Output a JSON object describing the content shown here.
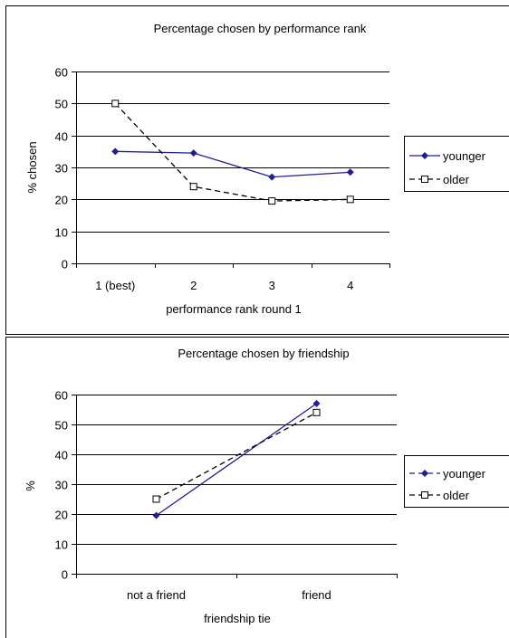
{
  "chart_data": [
    {
      "type": "line",
      "title": "Percentage chosen by performance rank",
      "xlabel": "performance rank round 1",
      "ylabel": "% chosen",
      "categories": [
        "1 (best)",
        "2",
        "3",
        "4"
      ],
      "ylim": [
        0,
        60
      ],
      "yticks": [
        0,
        10,
        20,
        30,
        40,
        50,
        60
      ],
      "grid": true,
      "legend": "right",
      "series": [
        {
          "name": "younger",
          "values": [
            35,
            34.5,
            27,
            28.5
          ],
          "color": "#1f1f8f",
          "dash": "solid",
          "marker": "diamond-filled"
        },
        {
          "name": "older",
          "values": [
            50,
            24,
            19.5,
            20
          ],
          "color": "#000000",
          "dash": "dashed",
          "marker": "square-open"
        }
      ]
    },
    {
      "type": "line",
      "title": "Percentage chosen by friendship",
      "xlabel": "friendship tie",
      "ylabel": "%",
      "categories": [
        "not a friend",
        "friend"
      ],
      "ylim": [
        0,
        60
      ],
      "yticks": [
        0,
        10,
        20,
        30,
        40,
        50,
        60
      ],
      "grid": true,
      "legend": "right",
      "series": [
        {
          "name": "younger",
          "values": [
            19.5,
            57
          ],
          "color": "#1f1f8f",
          "dash": "solid",
          "marker": "diamond-filled"
        },
        {
          "name": "older",
          "values": [
            25,
            54
          ],
          "color": "#000000",
          "dash": "dashed",
          "marker": "square-open"
        }
      ]
    }
  ]
}
